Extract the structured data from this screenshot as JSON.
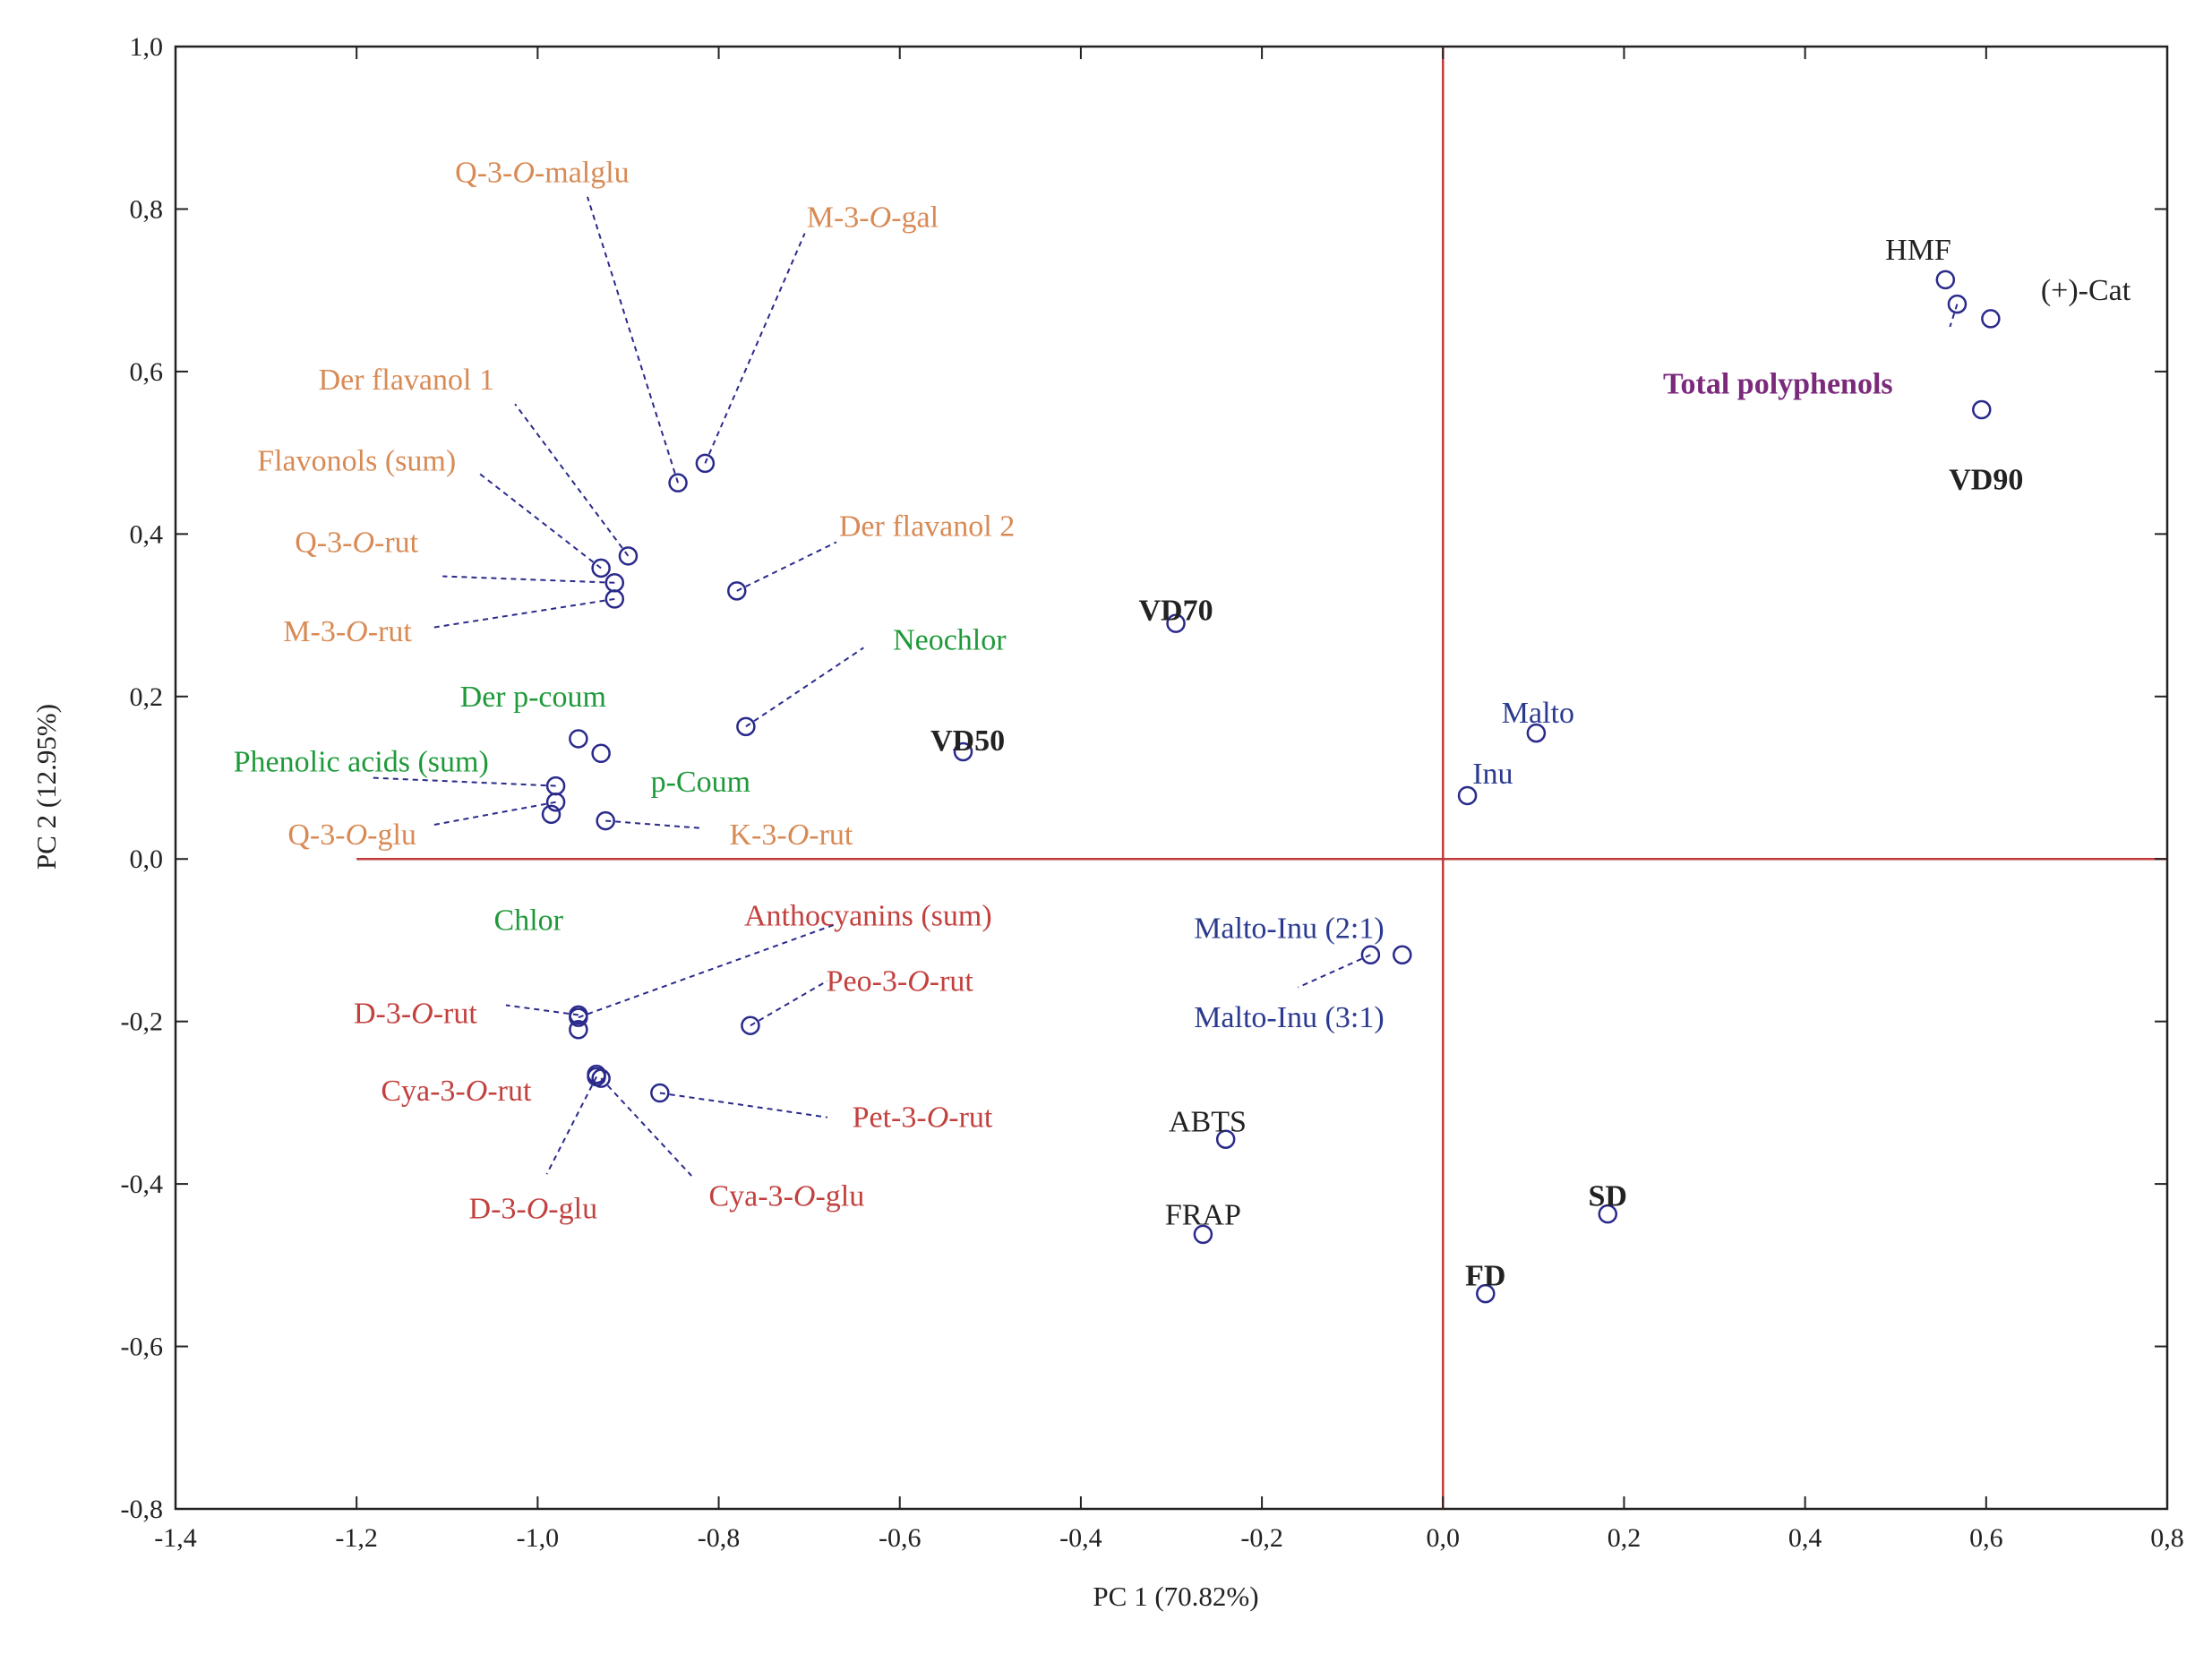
{
  "chart_data": {
    "type": "scatter",
    "xlabel": "PC 1 (70.82%)",
    "ylabel": "PC 2 (12.95%)",
    "xlim": [
      -1.4,
      0.8
    ],
    "ylim": [
      -0.8,
      1.0
    ],
    "grid": false,
    "x_ticks": [
      "-1,4",
      "-1,2",
      "-1,0",
      "-0,8",
      "-0,6",
      "-0,4",
      "-0,2",
      "0,0",
      "0,2",
      "0,4",
      "0,6",
      "0,8"
    ],
    "y_ticks": [
      "-0,8",
      "-0,6",
      "-0,4",
      "-0,2",
      "0,0",
      "0,2",
      "0,4",
      "0,6",
      "0,8",
      "1,0"
    ],
    "reference_lines": {
      "x": 0.0,
      "y": 0.0,
      "horizontal_from_x": -1.2,
      "color": "#c0393b"
    },
    "marker_color": "#2a2a8c",
    "label_colors": {
      "dark": "#222222",
      "purple": "#7b2a7b",
      "orange": "#d88a55",
      "green": "#1f9a3a",
      "red": "#c2413f",
      "blue": "#2b3a8f"
    },
    "points": [
      {
        "label": "Q-3-O-malglu",
        "x": -0.845,
        "y": 0.463,
        "color": "orange",
        "label_at": [
          -0.995,
          0.845
        ],
        "anchor": "middle",
        "leader_to": [
          -0.945,
          0.815
        ]
      },
      {
        "label": "M-3-O-gal",
        "x": -0.815,
        "y": 0.487,
        "color": "orange",
        "label_at": [
          -0.63,
          0.79
        ],
        "anchor": "middle",
        "leader_to": [
          -0.705,
          0.77
        ]
      },
      {
        "label": "Der flavanol 1",
        "x": -0.9,
        "y": 0.373,
        "color": "orange",
        "label_at": [
          -1.145,
          0.59
        ],
        "anchor": "middle",
        "leader_to": [
          -1.025,
          0.56
        ]
      },
      {
        "label": "Flavonols (sum)",
        "x": -0.93,
        "y": 0.358,
        "color": "orange",
        "label_at": [
          -1.2,
          0.49
        ],
        "anchor": "middle",
        "leader_to": [
          -1.065,
          0.475
        ]
      },
      {
        "label": "Q-3-O-rut",
        "x": -0.915,
        "y": 0.34,
        "color": "orange",
        "label_at": [
          -1.2,
          0.39
        ],
        "anchor": "middle",
        "leader_to": [
          -1.105,
          0.348
        ]
      },
      {
        "label": "M-3-O-rut",
        "x": -0.915,
        "y": 0.32,
        "color": "orange",
        "label_at": [
          -1.21,
          0.28
        ],
        "anchor": "middle",
        "leader_to": [
          -1.115,
          0.285
        ]
      },
      {
        "label": "Der flavanol 2",
        "x": -0.78,
        "y": 0.33,
        "color": "orange",
        "label_at": [
          -0.57,
          0.41
        ],
        "anchor": "middle",
        "leader_to": [
          -0.67,
          0.39
        ]
      },
      {
        "label": "Neochlor",
        "x": -0.77,
        "y": 0.163,
        "color": "green",
        "label_at": [
          -0.545,
          0.27
        ],
        "anchor": "middle",
        "leader_to": [
          -0.64,
          0.26
        ]
      },
      {
        "label": "Der p-coum",
        "x": -0.955,
        "y": 0.148,
        "color": "green",
        "label_at": [
          -1.005,
          0.2
        ],
        "anchor": "middle",
        "leader_to": null
      },
      {
        "label": "p-Coum",
        "x": -0.93,
        "y": 0.13,
        "color": "green",
        "label_at": [
          -0.82,
          0.095
        ],
        "anchor": "middle",
        "leader_to": null
      },
      {
        "label": "Phenolic acids (sum)",
        "x": -0.98,
        "y": 0.09,
        "color": "green",
        "label_at": [
          -1.195,
          0.12
        ],
        "anchor": "middle",
        "leader_to": [
          -1.185,
          0.1
        ]
      },
      {
        "label": "Q-3-O-glu",
        "x": -0.98,
        "y": 0.07,
        "color": "orange",
        "label_at": [
          -1.205,
          0.03
        ],
        "anchor": "middle",
        "leader_to": [
          -1.115,
          0.042
        ]
      },
      {
        "label": "",
        "x": -0.985,
        "y": 0.055,
        "color": "orange",
        "label_at": null,
        "anchor": "middle",
        "leader_to": null
      },
      {
        "label": "K-3-O-rut",
        "x": -0.925,
        "y": 0.047,
        "color": "orange",
        "label_at": [
          -0.72,
          0.03
        ],
        "anchor": "middle",
        "leader_to": [
          -0.82,
          0.038
        ]
      },
      {
        "label": "VD50",
        "x": -0.53,
        "y": 0.132,
        "color": "dark",
        "bold": true,
        "label_at": [
          -0.525,
          0.146
        ],
        "anchor": "middle",
        "leader_to": null
      },
      {
        "label": "VD70",
        "x": -0.295,
        "y": 0.29,
        "color": "dark",
        "bold": true,
        "label_at": [
          -0.295,
          0.306
        ],
        "anchor": "middle",
        "leader_to": null
      },
      {
        "label": "HMF",
        "x": 0.555,
        "y": 0.713,
        "color": "dark",
        "label_at": [
          0.525,
          0.75
        ],
        "anchor": "middle",
        "leader_to": null
      },
      {
        "label": "(+)-Cat",
        "x": 0.605,
        "y": 0.665,
        "color": "dark",
        "label_at": [
          0.71,
          0.7
        ],
        "anchor": "middle",
        "leader_to": null
      },
      {
        "label": "Total polyphenols",
        "x": 0.568,
        "y": 0.683,
        "color": "purple",
        "bold": true,
        "label_at": [
          0.37,
          0.585
        ],
        "anchor": "middle",
        "leader_to": [
          0.56,
          0.655
        ]
      },
      {
        "label": "VD90",
        "x": 0.595,
        "y": 0.553,
        "color": "dark",
        "bold": true,
        "label_at": [
          0.6,
          0.467
        ],
        "anchor": "middle",
        "leader_to": null
      },
      {
        "label": "Malto",
        "x": 0.103,
        "y": 0.155,
        "color": "blue",
        "label_at": [
          0.105,
          0.18
        ],
        "anchor": "middle",
        "leader_to": null
      },
      {
        "label": "Inu",
        "x": 0.027,
        "y": 0.078,
        "color": "blue",
        "label_at": [
          0.055,
          0.105
        ],
        "anchor": "middle",
        "leader_to": null
      },
      {
        "label": "Anthocyanins (sum)",
        "x": -0.955,
        "y": -0.195,
        "color": "red",
        "label_at": [
          -0.635,
          -0.07
        ],
        "anchor": "middle",
        "leader_to": [
          -0.67,
          -0.08
        ]
      },
      {
        "label": "Chlor",
        "x": null,
        "y": null,
        "color": "green",
        "label_at": [
          -1.01,
          -0.075
        ],
        "anchor": "middle",
        "leader_to": null
      },
      {
        "label": "D-3-O-rut",
        "x": -0.955,
        "y": -0.192,
        "color": "red",
        "label_at": [
          -1.135,
          -0.19
        ],
        "anchor": "middle",
        "leader_to": [
          -1.035,
          -0.18
        ]
      },
      {
        "label": "",
        "x": -0.955,
        "y": -0.21,
        "color": "red",
        "label_at": null,
        "anchor": "middle",
        "leader_to": null
      },
      {
        "label": "Peo-3-O-rut",
        "x": -0.765,
        "y": -0.205,
        "color": "red",
        "label_at": [
          -0.6,
          -0.15
        ],
        "anchor": "middle",
        "leader_to": [
          -0.68,
          -0.15
        ]
      },
      {
        "label": "Cya-3-O-rut",
        "x": -0.935,
        "y": -0.265,
        "color": "red",
        "label_at": [
          -1.09,
          -0.285
        ],
        "anchor": "middle",
        "leader_to": null
      },
      {
        "label": "Pet-3-O-rut",
        "x": -0.865,
        "y": -0.288,
        "color": "red",
        "label_at": [
          -0.575,
          -0.318
        ],
        "anchor": "middle",
        "leader_to": [
          -0.68,
          -0.318
        ]
      },
      {
        "label": "D-3-O-glu",
        "x": -0.935,
        "y": -0.268,
        "color": "red",
        "label_at": [
          -1.005,
          -0.43
        ],
        "anchor": "middle",
        "leader_to": [
          -0.99,
          -0.388
        ]
      },
      {
        "label": "Cya-3-O-glu",
        "x": -0.93,
        "y": -0.27,
        "color": "red",
        "label_at": [
          -0.725,
          -0.415
        ],
        "anchor": "middle",
        "leader_to": [
          -0.83,
          -0.39
        ]
      },
      {
        "label": "Malto-Inu (2:1)",
        "x": -0.045,
        "y": -0.118,
        "color": "blue",
        "label_at": [
          -0.17,
          -0.085
        ],
        "anchor": "middle",
        "leader_to": null
      },
      {
        "label": "Malto-Inu (3:1)",
        "x": -0.08,
        "y": -0.118,
        "color": "blue",
        "label_at": [
          -0.17,
          -0.195
        ],
        "anchor": "middle",
        "leader_to": [
          -0.16,
          -0.158
        ]
      },
      {
        "label": "ABTS",
        "x": -0.24,
        "y": -0.345,
        "color": "dark",
        "label_at": [
          -0.26,
          -0.323
        ],
        "anchor": "middle",
        "leader_to": null
      },
      {
        "label": "FRAP",
        "x": -0.265,
        "y": -0.462,
        "color": "dark",
        "label_at": [
          -0.265,
          -0.438
        ],
        "anchor": "middle",
        "leader_to": null
      },
      {
        "label": "SD",
        "x": 0.182,
        "y": -0.437,
        "color": "dark",
        "bold": true,
        "label_at": [
          0.182,
          -0.415
        ],
        "anchor": "middle",
        "leader_to": null
      },
      {
        "label": "FD",
        "x": 0.047,
        "y": -0.535,
        "color": "dark",
        "bold": true,
        "label_at": [
          0.047,
          -0.513
        ],
        "anchor": "middle",
        "leader_to": null
      }
    ]
  }
}
